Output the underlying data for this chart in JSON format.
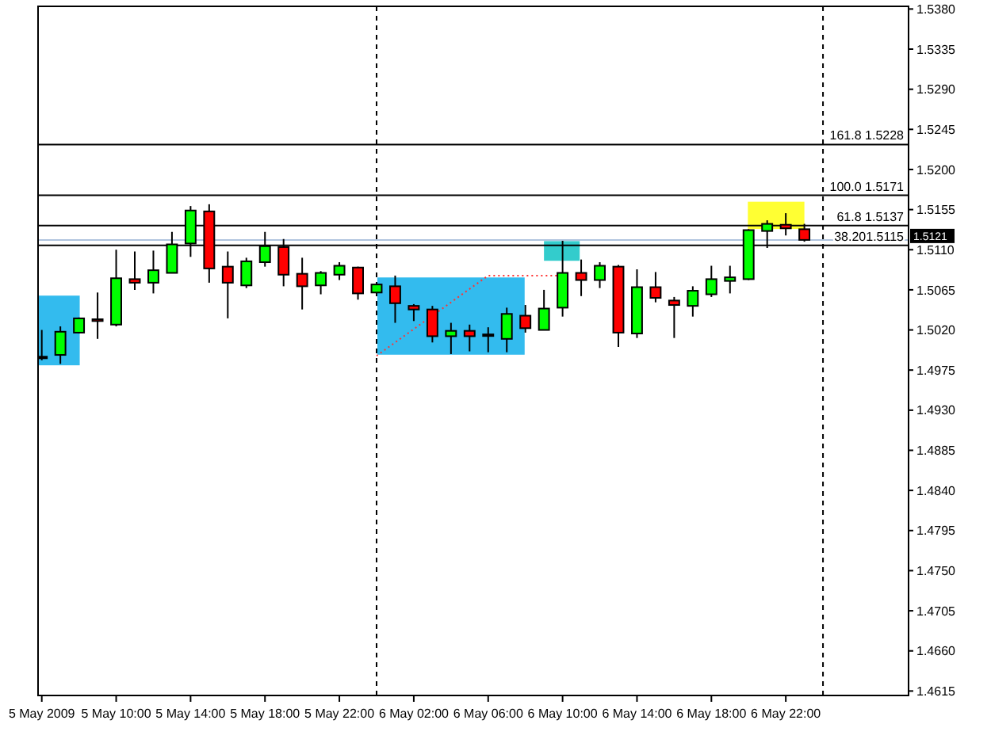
{
  "chart_data": {
    "type": "candlestick",
    "x": [
      "2009-05-05T06:00",
      "2009-05-05T07:00",
      "2009-05-05T08:00",
      "2009-05-05T09:00",
      "2009-05-05T10:00",
      "2009-05-05T11:00",
      "2009-05-05T12:00",
      "2009-05-05T13:00",
      "2009-05-05T14:00",
      "2009-05-05T15:00",
      "2009-05-05T16:00",
      "2009-05-05T17:00",
      "2009-05-05T18:00",
      "2009-05-05T19:00",
      "2009-05-05T20:00",
      "2009-05-05T21:00",
      "2009-05-05T22:00",
      "2009-05-05T23:00",
      "2009-05-06T00:00",
      "2009-05-06T01:00",
      "2009-05-06T02:00",
      "2009-05-06T03:00",
      "2009-05-06T04:00",
      "2009-05-06T05:00",
      "2009-05-06T06:00",
      "2009-05-06T07:00",
      "2009-05-06T08:00",
      "2009-05-06T09:00",
      "2009-05-06T10:00",
      "2009-05-06T11:00",
      "2009-05-06T12:00",
      "2009-05-06T13:00",
      "2009-05-06T14:00",
      "2009-05-06T15:00",
      "2009-05-06T16:00",
      "2009-05-06T17:00",
      "2009-05-06T18:00",
      "2009-05-06T19:00",
      "2009-05-06T20:00",
      "2009-05-06T21:00",
      "2009-05-06T22:00",
      "2009-05-06T23:00"
    ],
    "ohlc": [
      [
        1.499,
        1.502,
        1.4986,
        1.499
      ],
      [
        1.4992,
        1.5024,
        1.4982,
        1.5018
      ],
      [
        1.5017,
        1.5034,
        1.5016,
        1.5033
      ],
      [
        1.5032,
        1.5062,
        1.501,
        1.503
      ],
      [
        1.5026,
        1.511,
        1.5024,
        1.5078
      ],
      [
        1.5077,
        1.5108,
        1.5065,
        1.5073
      ],
      [
        1.5073,
        1.5109,
        1.5061,
        1.5087
      ],
      [
        1.5084,
        1.513,
        1.5084,
        1.5116
      ],
      [
        1.5117,
        1.5159,
        1.5102,
        1.5154
      ],
      [
        1.5153,
        1.5161,
        1.5073,
        1.5089
      ],
      [
        1.5091,
        1.5108,
        1.5033,
        1.5073
      ],
      [
        1.507,
        1.5101,
        1.5067,
        1.5097
      ],
      [
        1.5096,
        1.513,
        1.5091,
        1.5114
      ],
      [
        1.5113,
        1.5122,
        1.5069,
        1.5082
      ],
      [
        1.5083,
        1.5101,
        1.5043,
        1.5069
      ],
      [
        1.507,
        1.5086,
        1.506,
        1.5084
      ],
      [
        1.5082,
        1.5096,
        1.5076,
        1.5092
      ],
      [
        1.509,
        1.5091,
        1.5054,
        1.5061
      ],
      [
        1.5062,
        1.5072,
        1.5061,
        1.5071
      ],
      [
        1.5069,
        1.5081,
        1.5028,
        1.505
      ],
      [
        1.5047,
        1.5049,
        1.503,
        1.5043
      ],
      [
        1.5043,
        1.5047,
        1.5006,
        1.5013
      ],
      [
        1.5013,
        1.5028,
        1.4993,
        1.5019
      ],
      [
        1.5019,
        1.5026,
        1.4996,
        1.5013
      ],
      [
        1.5015,
        1.5023,
        1.4995,
        1.5015
      ],
      [
        1.501,
        1.5045,
        1.4995,
        1.5038
      ],
      [
        1.5036,
        1.5048,
        1.5017,
        1.5022
      ],
      [
        1.502,
        1.5065,
        1.502,
        1.5044
      ],
      [
        1.5045,
        1.512,
        1.5035,
        1.5084
      ],
      [
        1.5084,
        1.5099,
        1.5058,
        1.5076
      ],
      [
        1.5076,
        1.5096,
        1.5067,
        1.5092
      ],
      [
        1.5091,
        1.5093,
        1.5001,
        1.5017
      ],
      [
        1.5016,
        1.5088,
        1.5011,
        1.5068
      ],
      [
        1.5068,
        1.5085,
        1.5051,
        1.5056
      ],
      [
        1.5053,
        1.5057,
        1.5011,
        1.5048
      ],
      [
        1.5047,
        1.5069,
        1.5035,
        1.5064
      ],
      [
        1.506,
        1.5092,
        1.5057,
        1.5077
      ],
      [
        1.5075,
        1.5092,
        1.5061,
        1.5079
      ],
      [
        1.5077,
        1.5133,
        1.5076,
        1.5132
      ],
      [
        1.5131,
        1.5143,
        1.5112,
        1.5139
      ],
      [
        1.5138,
        1.5151,
        1.5126,
        1.5134
      ],
      [
        1.5133,
        1.5139,
        1.5119,
        1.5121
      ]
    ],
    "colors": [
      "#000000",
      "#00ff00",
      "#00ff00",
      "#ff0000",
      "#00ff00",
      "#ff0000",
      "#00ff00",
      "#00ff00",
      "#00ff00",
      "#ff0000",
      "#ff0000",
      "#00ff00",
      "#00ff00",
      "#ff0000",
      "#ff0000",
      "#00ff00",
      "#00ff00",
      "#ff0000",
      "#00ff00",
      "#ff0000",
      "#ff0000",
      "#ff0000",
      "#00ff00",
      "#ff0000",
      "#000000",
      "#00ff00",
      "#ff0000",
      "#00ff00",
      "#00ff00",
      "#ff0000",
      "#00ff00",
      "#ff0000",
      "#00ff00",
      "#ff0000",
      "#ff0000",
      "#00ff00",
      "#00ff00",
      "#00ff00",
      "#00ff00",
      "#00ff00",
      "#ff0000",
      "#ff0000"
    ],
    "xlim": [
      "2009-05-05T05:48",
      "2009-05-07T04:36"
    ],
    "xticks": [
      {
        "value": "2009-05-05T06:00",
        "label": "5 May 2009"
      },
      {
        "value": "2009-05-05T10:00",
        "label": "5 May 10:00"
      },
      {
        "value": "2009-05-05T14:00",
        "label": "5 May 14:00"
      },
      {
        "value": "2009-05-05T18:00",
        "label": "5 May 18:00"
      },
      {
        "value": "2009-05-05T22:00",
        "label": "5 May 22:00"
      },
      {
        "value": "2009-05-06T02:00",
        "label": "6 May 02:00"
      },
      {
        "value": "2009-05-06T06:00",
        "label": "6 May 06:00"
      },
      {
        "value": "2009-05-06T10:00",
        "label": "6 May 10:00"
      },
      {
        "value": "2009-05-06T14:00",
        "label": "6 May 14:00"
      },
      {
        "value": "2009-05-06T18:00",
        "label": "6 May 18:00"
      },
      {
        "value": "2009-05-06T22:00",
        "label": "6 May 22:00"
      }
    ],
    "ylim": [
      1.461,
      1.5383
    ],
    "yticks": [
      {
        "value": 1.4615,
        "label": "1.4615"
      },
      {
        "value": 1.466,
        "label": "1.4660"
      },
      {
        "value": 1.4705,
        "label": "1.4705"
      },
      {
        "value": 1.475,
        "label": "1.4750"
      },
      {
        "value": 1.4795,
        "label": "1.4795"
      },
      {
        "value": 1.484,
        "label": "1.4840"
      },
      {
        "value": 1.4885,
        "label": "1.4885"
      },
      {
        "value": 1.493,
        "label": "1.4930"
      },
      {
        "value": 1.4975,
        "label": "1.4975"
      },
      {
        "value": 1.502,
        "label": "1.5020"
      },
      {
        "value": 1.5065,
        "label": "1.5065"
      },
      {
        "value": 1.511,
        "label": "1.5110"
      },
      {
        "value": 1.5155,
        "label": "1.5155"
      },
      {
        "value": 1.52,
        "label": "1.5200"
      },
      {
        "value": 1.5245,
        "label": "1.5245"
      },
      {
        "value": 1.529,
        "label": "1.5290"
      },
      {
        "value": 1.5335,
        "label": "1.5335"
      },
      {
        "value": 1.538,
        "label": "1.5380"
      }
    ],
    "ref_lines": [
      {
        "axis": "x",
        "value": "2009-05-06T00:00",
        "color": "#000000",
        "line_style": "dashed"
      },
      {
        "axis": "x",
        "value": "2009-05-07T00:00",
        "color": "#000000",
        "line_style": "dashed"
      },
      {
        "axis": "y",
        "value": 1.5228,
        "label": "161.8 1.5228",
        "color": "#000000",
        "line_style": "solid"
      },
      {
        "axis": "y",
        "value": 1.5171,
        "label": "100.0 1.5171",
        "color": "#000000",
        "line_style": "solid"
      },
      {
        "axis": "y",
        "value": 1.5137,
        "label": "61.8 1.5137",
        "color": "#000000",
        "line_style": "solid"
      },
      {
        "axis": "y",
        "value": 1.5115,
        "label": "38.201.5115",
        "color": "#000000",
        "line_style": "solid"
      },
      {
        "axis": "y",
        "value": 1.5121,
        "label": "1.5121",
        "color": "#b0c4de",
        "line_style": "solid"
      }
    ],
    "series": [
      {
        "type": "line",
        "x": [
          "2009-05-06T00:00",
          "2009-05-06T06:00",
          "2009-05-06T10:00"
        ],
        "values": [
          1.4991,
          1.5081,
          1.5081
        ],
        "color": "#ff3333",
        "line_style": "dotted"
      }
    ]
  }
}
